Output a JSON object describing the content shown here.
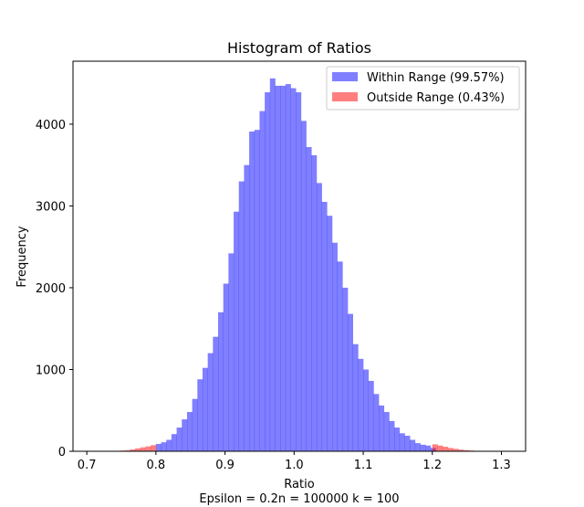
{
  "chart_data": {
    "type": "bar",
    "title": "Histogram of Ratios",
    "xlabel": "Ratio",
    "ylabel": "Frequency",
    "caption": "Epsilon = 0.2n = 100000 k = 100",
    "xlim": [
      0.68,
      1.335
    ],
    "ylim": [
      0,
      4770
    ],
    "xticks": [
      {
        "value": 0.7,
        "label": "0.7"
      },
      {
        "value": 0.8,
        "label": "0.8"
      },
      {
        "value": 0.9,
        "label": "0.9"
      },
      {
        "value": 1.0,
        "label": "1.0"
      },
      {
        "value": 1.1,
        "label": "1.1"
      },
      {
        "value": 1.2,
        "label": "1.2"
      },
      {
        "value": 1.3,
        "label": "1.3"
      }
    ],
    "yticks": [
      {
        "value": 0,
        "label": "0"
      },
      {
        "value": 1000,
        "label": "1000"
      },
      {
        "value": 2000,
        "label": "2000"
      },
      {
        "value": 3000,
        "label": "3000"
      },
      {
        "value": 4000,
        "label": "4000"
      }
    ],
    "grid": false,
    "legend_position": "top-right",
    "bin_width": 0.0075,
    "series": [
      {
        "name": "Within Range (99.57%)",
        "color": "#0000ff",
        "alpha": 0.5,
        "bin_starts": [
          0.8,
          0.8075,
          0.815,
          0.8225,
          0.83,
          0.8375,
          0.845,
          0.8525,
          0.86,
          0.8675,
          0.875,
          0.8825,
          0.89,
          0.8975,
          0.905,
          0.9125,
          0.92,
          0.9275,
          0.935,
          0.9425,
          0.95,
          0.9575,
          0.965,
          0.9725,
          0.98,
          0.9875,
          0.995,
          1.0025,
          1.01,
          1.0175,
          1.025,
          1.0325,
          1.04,
          1.0475,
          1.055,
          1.0625,
          1.07,
          1.0775,
          1.085,
          1.0925,
          1.1,
          1.1075,
          1.115,
          1.1225,
          1.13,
          1.1375,
          1.145,
          1.1525,
          1.16,
          1.1675,
          1.175,
          1.1825,
          1.19,
          1.1975
        ],
        "values": [
          90,
          110,
          140,
          210,
          290,
          390,
          480,
          640,
          880,
          1020,
          1200,
          1400,
          1700,
          2050,
          2420,
          2930,
          3300,
          3500,
          3910,
          3930,
          4160,
          4390,
          4560,
          4470,
          4470,
          4490,
          4440,
          4390,
          4040,
          3720,
          3620,
          3280,
          3050,
          2880,
          2550,
          2320,
          2000,
          1680,
          1310,
          1130,
          1000,
          860,
          700,
          560,
          480,
          370,
          290,
          220,
          190,
          140,
          100,
          80,
          70,
          40
        ]
      },
      {
        "name": "Outside Range (0.43%)",
        "color": "#ff0000",
        "alpha": 0.5,
        "bin_starts": [
          0.74,
          0.7475,
          0.755,
          0.7625,
          0.77,
          0.7775,
          0.785,
          0.7925,
          1.2,
          1.2075,
          1.215,
          1.2225,
          1.23,
          1.2375,
          1.245,
          1.2525,
          1.26,
          1.2675
        ],
        "values": [
          5,
          8,
          12,
          22,
          35,
          48,
          60,
          75,
          85,
          70,
          55,
          40,
          30,
          20,
          14,
          9,
          6,
          4
        ]
      }
    ]
  }
}
